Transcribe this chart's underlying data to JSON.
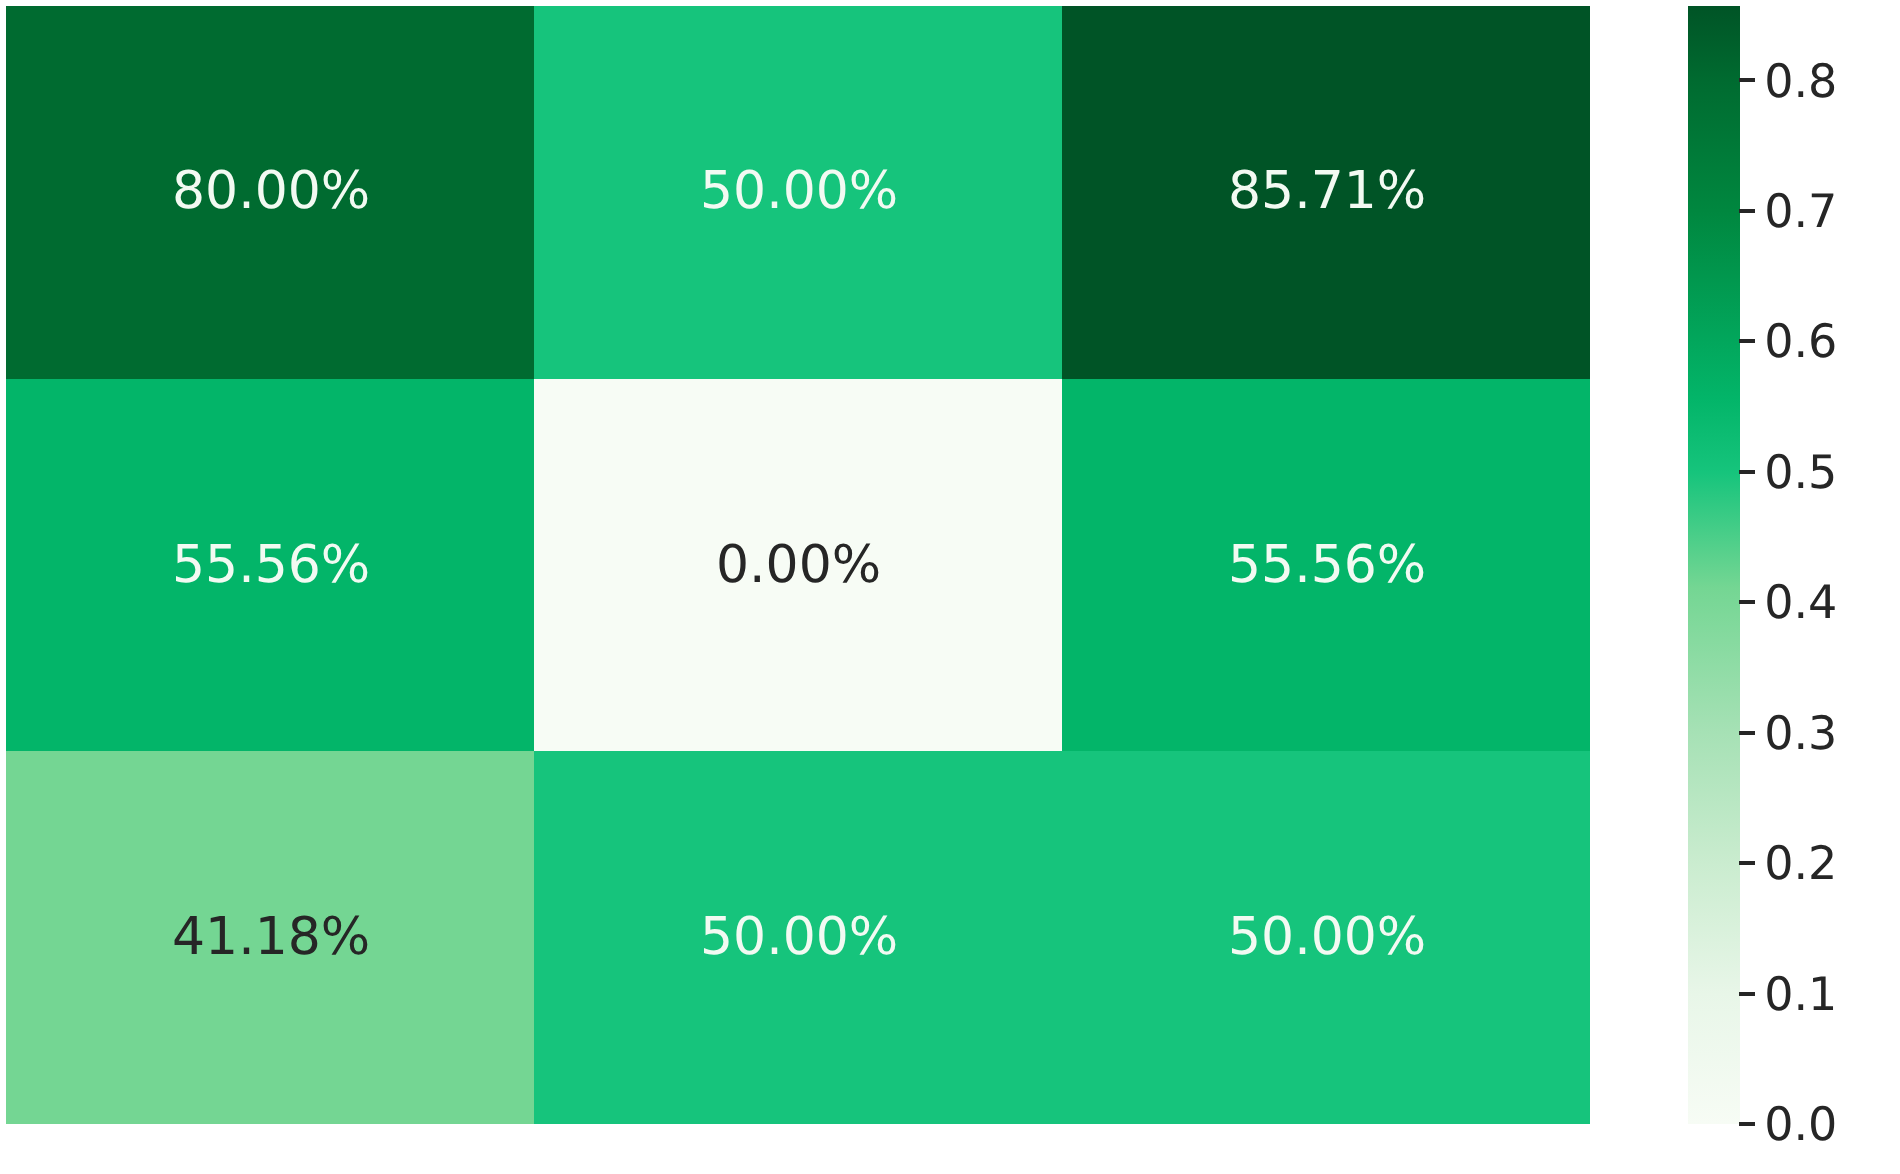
{
  "chart_data": {
    "type": "heatmap",
    "categories": [
      null,
      null,
      null
    ],
    "y_categories": [
      null,
      null,
      null
    ],
    "cells": [
      [
        0.8,
        0.5,
        0.8571
      ],
      [
        0.5556,
        0,
        0.5556
      ],
      [
        0.4118,
        0.5,
        0.5
      ]
    ],
    "cell_labels": [
      [
        "80.00%",
        "50.00%",
        "85.71%"
      ],
      [
        "55.56%",
        "0.00%",
        "55.56%"
      ],
      [
        "41.18%",
        "50.00%",
        "50.00%"
      ]
    ],
    "clim": [
      0,
      0.8571
    ],
    "cticks": [
      {
        "value": 0,
        "label": "0.0"
      },
      {
        "value": 0.1,
        "label": "0.1"
      },
      {
        "value": 0.2,
        "label": "0.2"
      },
      {
        "value": 0.3,
        "label": "0.3"
      },
      {
        "value": 0.4,
        "label": "0.4"
      },
      {
        "value": 0.5,
        "label": "0.5"
      },
      {
        "value": 0.6,
        "label": "0.6"
      },
      {
        "value": 0.7,
        "label": "0.7"
      },
      {
        "value": 0.8,
        "label": "0.8"
      }
    ]
  }
}
